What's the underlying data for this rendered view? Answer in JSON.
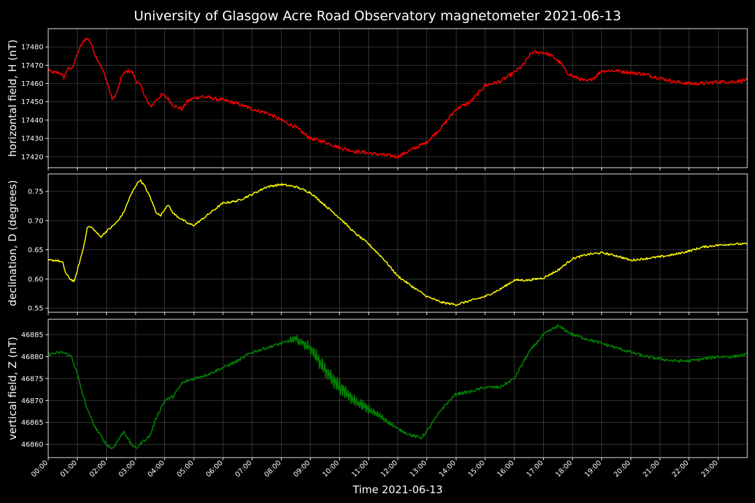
{
  "title": "University of Glasgow Acre Road Observatory magnetometer 2021-06-13",
  "chart_data": {
    "type": "line",
    "title": "University of Glasgow Acre Road Observatory magnetometer 2021-06-13",
    "xlabel": "Time 2021-06-13",
    "x_tick_labels": [
      "00:00",
      "01:00",
      "02:00",
      "03:00",
      "04:00",
      "05:00",
      "06:00",
      "07:00",
      "08:00",
      "09:00",
      "10:00",
      "11:00",
      "12:00",
      "13:00",
      "14:00",
      "15:00",
      "16:00",
      "17:00",
      "18:00",
      "19:00",
      "20:00",
      "21:00",
      "22:00",
      "23:00"
    ],
    "xlim_hours": [
      0,
      24
    ],
    "grid": true,
    "background": "#000000",
    "panels": [
      {
        "name": "H",
        "ylabel": "horizontal field, H (nT)",
        "color": "#ff0000",
        "ylim": [
          17414,
          17490
        ],
        "yticks": [
          17420,
          17430,
          17440,
          17450,
          17460,
          17470,
          17480
        ],
        "noise": 1.0,
        "points": [
          [
            0,
            17468
          ],
          [
            0.1,
            17466
          ],
          [
            0.4,
            17466
          ],
          [
            0.55,
            17463
          ],
          [
            0.65,
            17468
          ],
          [
            0.8,
            17468
          ],
          [
            0.95,
            17474
          ],
          [
            1.1,
            17480
          ],
          [
            1.3,
            17485
          ],
          [
            1.45,
            17483
          ],
          [
            1.6,
            17476
          ],
          [
            1.8,
            17470
          ],
          [
            2.0,
            17462
          ],
          [
            2.2,
            17451
          ],
          [
            2.35,
            17455
          ],
          [
            2.55,
            17465
          ],
          [
            2.75,
            17467
          ],
          [
            2.9,
            17466
          ],
          [
            3.0,
            17462
          ],
          [
            3.2,
            17458
          ],
          [
            3.35,
            17452
          ],
          [
            3.5,
            17447
          ],
          [
            3.65,
            17450
          ],
          [
            3.9,
            17454
          ],
          [
            4.1,
            17452
          ],
          [
            4.3,
            17448
          ],
          [
            4.6,
            17446
          ],
          [
            4.75,
            17450
          ],
          [
            5.0,
            17452
          ],
          [
            5.3,
            17453
          ],
          [
            5.6,
            17452
          ],
          [
            6.0,
            17451
          ],
          [
            6.5,
            17449
          ],
          [
            7.0,
            17446
          ],
          [
            7.5,
            17444
          ],
          [
            8.0,
            17440
          ],
          [
            8.5,
            17436
          ],
          [
            9.0,
            17430
          ],
          [
            9.5,
            17428
          ],
          [
            10.0,
            17425
          ],
          [
            10.5,
            17423
          ],
          [
            11.0,
            17422
          ],
          [
            11.5,
            17421
          ],
          [
            12.0,
            17420
          ],
          [
            12.5,
            17424
          ],
          [
            13.0,
            17428
          ],
          [
            13.5,
            17436
          ],
          [
            14.0,
            17446
          ],
          [
            14.5,
            17450
          ],
          [
            15.0,
            17459
          ],
          [
            15.5,
            17461
          ],
          [
            16.0,
            17466
          ],
          [
            16.3,
            17470
          ],
          [
            16.6,
            17477
          ],
          [
            17.0,
            17477
          ],
          [
            17.3,
            17475
          ],
          [
            17.6,
            17471
          ],
          [
            17.8,
            17466
          ],
          [
            18.0,
            17464
          ],
          [
            18.5,
            17461
          ],
          [
            18.8,
            17464
          ],
          [
            19.0,
            17467
          ],
          [
            19.5,
            17467
          ],
          [
            20.0,
            17466
          ],
          [
            20.5,
            17465
          ],
          [
            21.0,
            17463
          ],
          [
            21.5,
            17461
          ],
          [
            22.0,
            17460
          ],
          [
            22.5,
            17460
          ],
          [
            23.0,
            17461
          ],
          [
            23.5,
            17461
          ],
          [
            24.0,
            17462
          ]
        ]
      },
      {
        "name": "D",
        "ylabel": "declination, D (degrees)",
        "color": "#ffff00",
        "ylim": [
          0.543,
          0.78
        ],
        "yticks": [
          0.55,
          0.6,
          0.65,
          0.7,
          0.75
        ],
        "yticklabels": [
          "0.55",
          "0.60",
          "0.65",
          "0.70",
          "0.75"
        ],
        "noise": 0.0018,
        "points": [
          [
            0,
            0.632
          ],
          [
            0.3,
            0.632
          ],
          [
            0.5,
            0.628
          ],
          [
            0.6,
            0.61
          ],
          [
            0.75,
            0.6
          ],
          [
            0.9,
            0.596
          ],
          [
            1.0,
            0.615
          ],
          [
            1.2,
            0.652
          ],
          [
            1.35,
            0.69
          ],
          [
            1.5,
            0.688
          ],
          [
            1.8,
            0.672
          ],
          [
            2.0,
            0.682
          ],
          [
            2.2,
            0.69
          ],
          [
            2.4,
            0.7
          ],
          [
            2.6,
            0.715
          ],
          [
            2.8,
            0.74
          ],
          [
            3.0,
            0.76
          ],
          [
            3.15,
            0.77
          ],
          [
            3.3,
            0.76
          ],
          [
            3.5,
            0.74
          ],
          [
            3.7,
            0.715
          ],
          [
            3.85,
            0.708
          ],
          [
            4.1,
            0.728
          ],
          [
            4.3,
            0.712
          ],
          [
            4.5,
            0.705
          ],
          [
            4.8,
            0.695
          ],
          [
            5.0,
            0.692
          ],
          [
            5.3,
            0.703
          ],
          [
            5.6,
            0.715
          ],
          [
            6.0,
            0.73
          ],
          [
            6.5,
            0.734
          ],
          [
            7.0,
            0.745
          ],
          [
            7.5,
            0.758
          ],
          [
            8.0,
            0.762
          ],
          [
            8.5,
            0.758
          ],
          [
            9.0,
            0.748
          ],
          [
            9.3,
            0.735
          ],
          [
            9.6,
            0.722
          ],
          [
            10.0,
            0.705
          ],
          [
            10.5,
            0.68
          ],
          [
            11.0,
            0.66
          ],
          [
            11.5,
            0.635
          ],
          [
            12.0,
            0.605
          ],
          [
            12.5,
            0.587
          ],
          [
            13.0,
            0.57
          ],
          [
            13.5,
            0.56
          ],
          [
            14.0,
            0.556
          ],
          [
            14.5,
            0.563
          ],
          [
            15.0,
            0.57
          ],
          [
            15.5,
            0.582
          ],
          [
            16.0,
            0.598
          ],
          [
            16.5,
            0.598
          ],
          [
            17.0,
            0.602
          ],
          [
            17.5,
            0.615
          ],
          [
            18.0,
            0.635
          ],
          [
            18.5,
            0.642
          ],
          [
            19.0,
            0.645
          ],
          [
            19.5,
            0.64
          ],
          [
            20.0,
            0.632
          ],
          [
            20.5,
            0.635
          ],
          [
            21.0,
            0.638
          ],
          [
            21.5,
            0.642
          ],
          [
            22.0,
            0.648
          ],
          [
            22.5,
            0.655
          ],
          [
            23.0,
            0.658
          ],
          [
            23.5,
            0.66
          ],
          [
            24.0,
            0.66
          ]
        ]
      },
      {
        "name": "Z",
        "ylabel": "vertical field, Z (nT)",
        "color": "#008000",
        "ylim": [
          46857,
          46888.5
        ],
        "yticks": [
          46860,
          46865,
          46870,
          46875,
          46880,
          46885
        ],
        "noise": 0.35,
        "points": [
          [
            0,
            46880.5
          ],
          [
            0.5,
            46881
          ],
          [
            0.8,
            46880
          ],
          [
            1.0,
            46876
          ],
          [
            1.2,
            46871
          ],
          [
            1.4,
            46867
          ],
          [
            1.6,
            46864
          ],
          [
            1.8,
            46862
          ],
          [
            2.0,
            46860
          ],
          [
            2.2,
            46859
          ],
          [
            2.4,
            46861
          ],
          [
            2.6,
            46863
          ],
          [
            2.8,
            46860.5
          ],
          [
            3.0,
            46859
          ],
          [
            3.3,
            46861
          ],
          [
            3.5,
            46862
          ],
          [
            3.7,
            46866
          ],
          [
            4.0,
            46870
          ],
          [
            4.3,
            46871
          ],
          [
            4.6,
            46874
          ],
          [
            5.0,
            46875
          ],
          [
            5.5,
            46876
          ],
          [
            6.0,
            46877.5
          ],
          [
            6.5,
            46879
          ],
          [
            7.0,
            46881
          ],
          [
            7.5,
            46882
          ],
          [
            8.0,
            46883
          ],
          [
            8.5,
            46884
          ],
          [
            9.0,
            46882
          ],
          [
            9.5,
            46877
          ],
          [
            10.0,
            46873
          ],
          [
            10.5,
            46870
          ],
          [
            11.0,
            46868
          ],
          [
            11.5,
            46866
          ],
          [
            12.0,
            46863.5
          ],
          [
            12.5,
            46862
          ],
          [
            12.8,
            46861.5
          ],
          [
            13.0,
            46863
          ],
          [
            13.5,
            46868
          ],
          [
            14.0,
            46871.5
          ],
          [
            14.5,
            46872
          ],
          [
            15.0,
            46873
          ],
          [
            15.5,
            46873
          ],
          [
            16.0,
            46875
          ],
          [
            16.5,
            46881
          ],
          [
            17.0,
            46885
          ],
          [
            17.5,
            46887
          ],
          [
            18.0,
            46885
          ],
          [
            18.5,
            46884
          ],
          [
            19.0,
            46883
          ],
          [
            19.5,
            46882
          ],
          [
            20.0,
            46881
          ],
          [
            20.5,
            46880
          ],
          [
            21.0,
            46879.5
          ],
          [
            21.5,
            46879
          ],
          [
            22.0,
            46879
          ],
          [
            22.5,
            46879.5
          ],
          [
            23.0,
            46880
          ],
          [
            23.5,
            46880
          ],
          [
            24.0,
            46880.5
          ]
        ]
      }
    ]
  }
}
